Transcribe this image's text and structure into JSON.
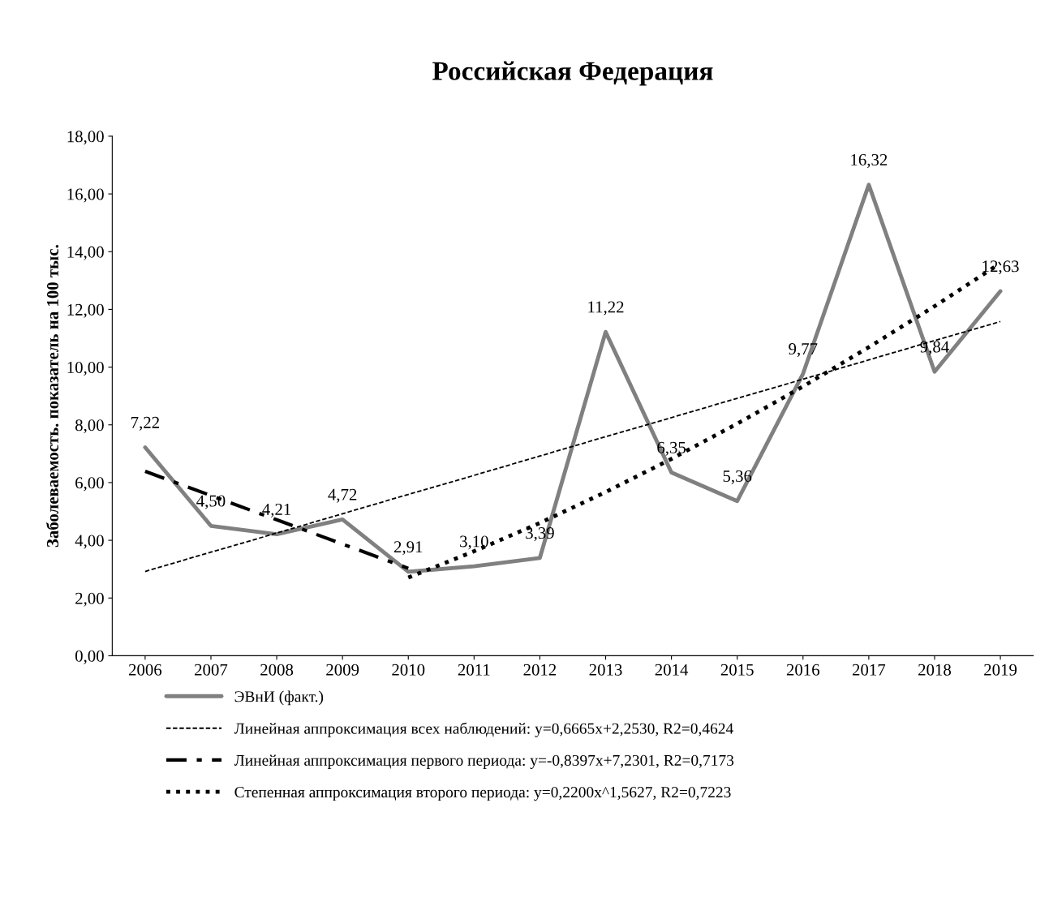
{
  "chart_data": {
    "type": "line",
    "title": "Российская Федерация",
    "ylabel": "Заболеваемость. показатель на 100 тыс.",
    "categories": [
      "2006",
      "2007",
      "2008",
      "2009",
      "2010",
      "2011",
      "2012",
      "2013",
      "2014",
      "2015",
      "2016",
      "2017",
      "2018",
      "2019"
    ],
    "ylim": [
      0,
      18
    ],
    "yticks": [
      {
        "value": 0,
        "label": "0,00"
      },
      {
        "value": 2,
        "label": "2,00"
      },
      {
        "value": 4,
        "label": "4,00"
      },
      {
        "value": 6,
        "label": "6,00"
      },
      {
        "value": 8,
        "label": "8,00"
      },
      {
        "value": 10,
        "label": "10,00"
      },
      {
        "value": 12,
        "label": "12,00"
      },
      {
        "value": 14,
        "label": "14,00"
      },
      {
        "value": 16,
        "label": "16,00"
      },
      {
        "value": 18,
        "label": "18,00"
      }
    ],
    "grid": false,
    "legend": "bottom",
    "marker": "none",
    "series": [
      {
        "name": "ЭВнИ (факт.)",
        "color": "#808080",
        "line_style": "solid",
        "values": [
          7.22,
          4.5,
          4.21,
          4.72,
          2.91,
          3.1,
          3.39,
          11.22,
          6.35,
          5.36,
          9.77,
          16.32,
          9.84,
          12.63
        ],
        "value_labels": [
          "7,22",
          "4,50",
          "4,21",
          "4,72",
          "2,91",
          "3,10",
          "3,39",
          "11,22",
          "6,35",
          "5,36",
          "9,77",
          "16,32",
          "9,84",
          "12,63"
        ]
      },
      {
        "name": "Линейная аппроксимация всех наблюдений: y=0,6665x+2,2530, R2=0,4624",
        "color": "#000000",
        "line_style": "dashed",
        "values": [
          2.92,
          3.59,
          4.25,
          4.92,
          5.59,
          6.25,
          6.92,
          7.59,
          8.25,
          8.92,
          9.58,
          10.25,
          10.92,
          11.58
        ]
      },
      {
        "name": "Линейная аппроксимация первого периода: y=-0,8397x+7,2301, R2=0,7173",
        "color": "#000000",
        "line_style": "dashdot",
        "values": [
          6.39,
          5.55,
          4.71,
          3.87,
          3.03,
          null,
          null,
          null,
          null,
          null,
          null,
          null,
          null,
          null
        ]
      },
      {
        "name": "Степенная аппроксимация второго периода: y=0,2200x^1,5627, R2=0,7223",
        "color": "#000000",
        "line_style": "dotted",
        "values": [
          null,
          null,
          null,
          null,
          2.71,
          3.62,
          4.6,
          5.67,
          6.82,
          8.04,
          9.33,
          10.69,
          12.11,
          13.6
        ]
      }
    ]
  }
}
